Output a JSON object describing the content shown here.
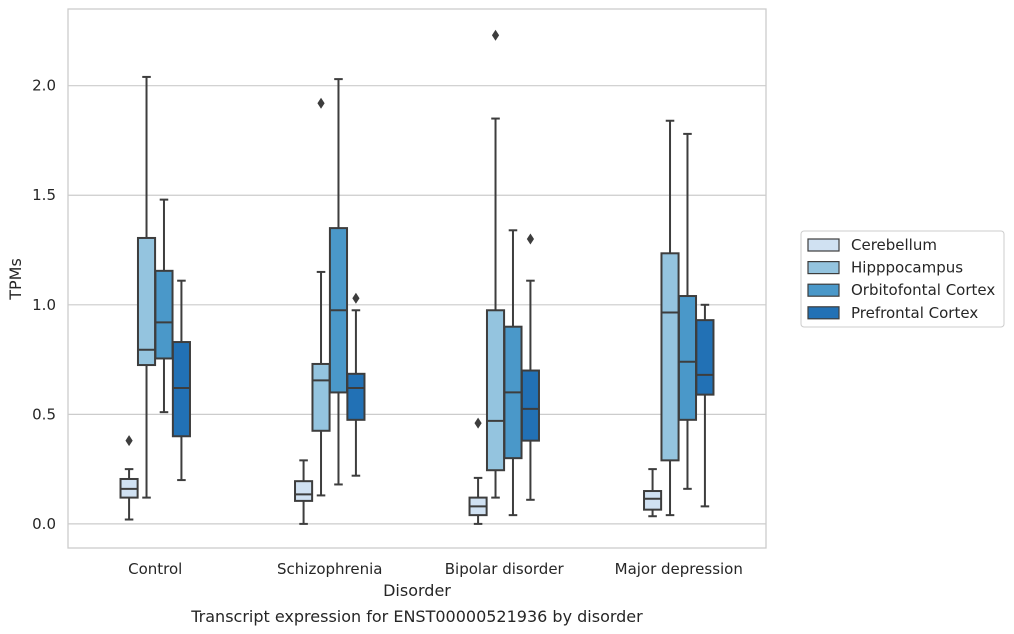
{
  "chart_data": {
    "type": "box",
    "caption": "Transcript expression for ENST00000521936 by disorder",
    "xlabel": "Disorder",
    "ylabel": "TPMs",
    "ylim": [
      -0.11,
      2.35
    ],
    "yticks": [
      0.0,
      0.5,
      1.0,
      1.5,
      2.0
    ],
    "ytick_labels": [
      "0.0",
      "0.5",
      "1.0",
      "1.5",
      "2.0"
    ],
    "grid": "horizontal",
    "legend_position": "right",
    "categories": [
      "Control",
      "Schizophrenia",
      "Bipolar disorder",
      "Major depression"
    ],
    "series": [
      {
        "name": "Cerebellum",
        "color": "#d0e1f2",
        "boxes": [
          {
            "whisker_low": 0.02,
            "q1": 0.12,
            "median": 0.16,
            "q3": 0.205,
            "whisker_high": 0.25,
            "outliers": [
              0.38
            ]
          },
          {
            "whisker_low": 0.0,
            "q1": 0.105,
            "median": 0.135,
            "q3": 0.195,
            "whisker_high": 0.29,
            "outliers": []
          },
          {
            "whisker_low": 0.0,
            "q1": 0.04,
            "median": 0.08,
            "q3": 0.12,
            "whisker_high": 0.21,
            "outliers": [
              0.46
            ]
          },
          {
            "whisker_low": 0.035,
            "q1": 0.065,
            "median": 0.115,
            "q3": 0.15,
            "whisker_high": 0.25,
            "outliers": []
          }
        ]
      },
      {
        "name": "Hipppocampus",
        "color": "#94c4df",
        "boxes": [
          {
            "whisker_low": 0.12,
            "q1": 0.725,
            "median": 0.795,
            "q3": 1.305,
            "whisker_high": 2.04,
            "outliers": []
          },
          {
            "whisker_low": 0.13,
            "q1": 0.425,
            "median": 0.655,
            "q3": 0.73,
            "whisker_high": 1.15,
            "outliers": [
              1.92
            ]
          },
          {
            "whisker_low": 0.12,
            "q1": 0.245,
            "median": 0.47,
            "q3": 0.975,
            "whisker_high": 1.85,
            "outliers": [
              2.23
            ]
          },
          {
            "whisker_low": 0.04,
            "q1": 0.29,
            "median": 0.965,
            "q3": 1.235,
            "whisker_high": 1.84,
            "outliers": []
          }
        ]
      },
      {
        "name": "Orbitofontal Cortex",
        "color": "#4a98c9",
        "boxes": [
          {
            "whisker_low": 0.51,
            "q1": 0.755,
            "median": 0.92,
            "q3": 1.155,
            "whisker_high": 1.48,
            "outliers": []
          },
          {
            "whisker_low": 0.18,
            "q1": 0.6,
            "median": 0.975,
            "q3": 1.35,
            "whisker_high": 2.03,
            "outliers": []
          },
          {
            "whisker_low": 0.04,
            "q1": 0.3,
            "median": 0.6,
            "q3": 0.9,
            "whisker_high": 1.34,
            "outliers": []
          },
          {
            "whisker_low": 0.16,
            "q1": 0.475,
            "median": 0.74,
            "q3": 1.04,
            "whisker_high": 1.78,
            "outliers": []
          }
        ]
      },
      {
        "name": "Prefrontal Cortex",
        "color": "#2271b5",
        "boxes": [
          {
            "whisker_low": 0.2,
            "q1": 0.4,
            "median": 0.62,
            "q3": 0.83,
            "whisker_high": 1.11,
            "outliers": []
          },
          {
            "whisker_low": 0.22,
            "q1": 0.475,
            "median": 0.62,
            "q3": 0.685,
            "whisker_high": 0.975,
            "outliers": [
              1.03
            ]
          },
          {
            "whisker_low": 0.11,
            "q1": 0.38,
            "median": 0.525,
            "q3": 0.7,
            "whisker_high": 1.11,
            "outliers": [
              1.3
            ]
          },
          {
            "whisker_low": 0.08,
            "q1": 0.59,
            "median": 0.68,
            "q3": 0.93,
            "whisker_high": 1.0,
            "outliers": []
          }
        ]
      }
    ],
    "colors": {
      "grid": "#cccccc",
      "frame": "#cccccc",
      "box_line": "#3d3d3d",
      "text": "#262626"
    }
  }
}
